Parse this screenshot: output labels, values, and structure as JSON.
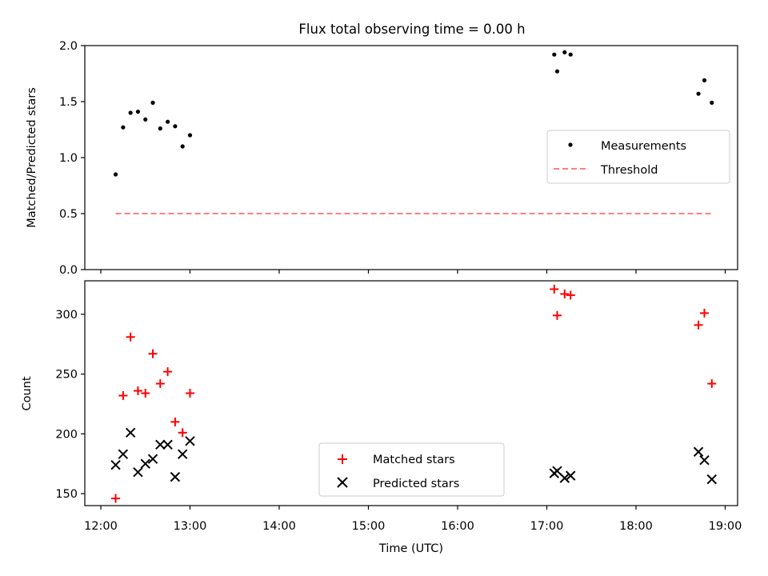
{
  "chart_data": [
    {
      "type": "scatter",
      "title": "Flux total observing time = 0.00 h",
      "xlabel": "",
      "ylabel": "Matched/Predicted stars",
      "xlim": [
        "12:00",
        "19:00"
      ],
      "ylim": [
        0,
        2.0
      ],
      "yticks": [
        "0.0",
        "0.5",
        "1.0",
        "1.5",
        "2.0"
      ],
      "legend_position": "right",
      "series": [
        {
          "name": "Measurements",
          "color": "#000000",
          "marker": "dot",
          "points": [
            [
              "12:10",
              0.85
            ],
            [
              "12:15",
              1.27
            ],
            [
              "12:20",
              1.4
            ],
            [
              "12:25",
              1.41
            ],
            [
              "12:30",
              1.34
            ],
            [
              "12:35",
              1.49
            ],
            [
              "12:40",
              1.26
            ],
            [
              "12:45",
              1.32
            ],
            [
              "12:50",
              1.28
            ],
            [
              "12:55",
              1.1
            ],
            [
              "13:00",
              1.2
            ],
            [
              "17:05",
              1.92
            ],
            [
              "17:07",
              1.77
            ],
            [
              "17:12",
              1.94
            ],
            [
              "17:16",
              1.92
            ],
            [
              "18:42",
              1.57
            ],
            [
              "18:46",
              1.69
            ],
            [
              "18:51",
              1.49
            ]
          ]
        },
        {
          "name": "Threshold",
          "color": "#ff8080",
          "style": "dashed",
          "points": [
            [
              "12:10",
              0.5
            ],
            [
              "18:51",
              0.5
            ]
          ]
        }
      ]
    },
    {
      "type": "scatter",
      "title": "",
      "xlabel": "Time (UTC)",
      "ylabel": "Count",
      "xlim": [
        "12:00",
        "19:00"
      ],
      "ylim": [
        140,
        328
      ],
      "xticks": [
        "12:00",
        "13:00",
        "14:00",
        "15:00",
        "16:00",
        "17:00",
        "18:00",
        "19:00"
      ],
      "yticks": [
        "150",
        "200",
        "250",
        "300"
      ],
      "legend_position": "bottom-center",
      "series": [
        {
          "name": "Matched stars",
          "color": "#ff0000",
          "marker": "plus",
          "points": [
            [
              "12:10",
              146
            ],
            [
              "12:15",
              232
            ],
            [
              "12:20",
              281
            ],
            [
              "12:25",
              236
            ],
            [
              "12:30",
              234
            ],
            [
              "12:35",
              267
            ],
            [
              "12:40",
              242
            ],
            [
              "12:45",
              252
            ],
            [
              "12:50",
              210
            ],
            [
              "12:55",
              201
            ],
            [
              "13:00",
              234
            ],
            [
              "17:05",
              321
            ],
            [
              "17:07",
              299
            ],
            [
              "17:12",
              317
            ],
            [
              "17:16",
              316
            ],
            [
              "18:42",
              291
            ],
            [
              "18:46",
              301
            ],
            [
              "18:51",
              242
            ]
          ]
        },
        {
          "name": "Predicted stars",
          "color": "#000000",
          "marker": "x",
          "points": [
            [
              "12:10",
              174
            ],
            [
              "12:15",
              183
            ],
            [
              "12:20",
              201
            ],
            [
              "12:25",
              168
            ],
            [
              "12:30",
              175
            ],
            [
              "12:35",
              179
            ],
            [
              "12:40",
              191
            ],
            [
              "12:45",
              191
            ],
            [
              "12:50",
              164
            ],
            [
              "12:55",
              183
            ],
            [
              "13:00",
              194
            ],
            [
              "17:05",
              167
            ],
            [
              "17:07",
              169
            ],
            [
              "17:12",
              163
            ],
            [
              "17:16",
              165
            ],
            [
              "18:42",
              185
            ],
            [
              "18:46",
              178
            ],
            [
              "18:51",
              162
            ]
          ]
        }
      ]
    }
  ]
}
